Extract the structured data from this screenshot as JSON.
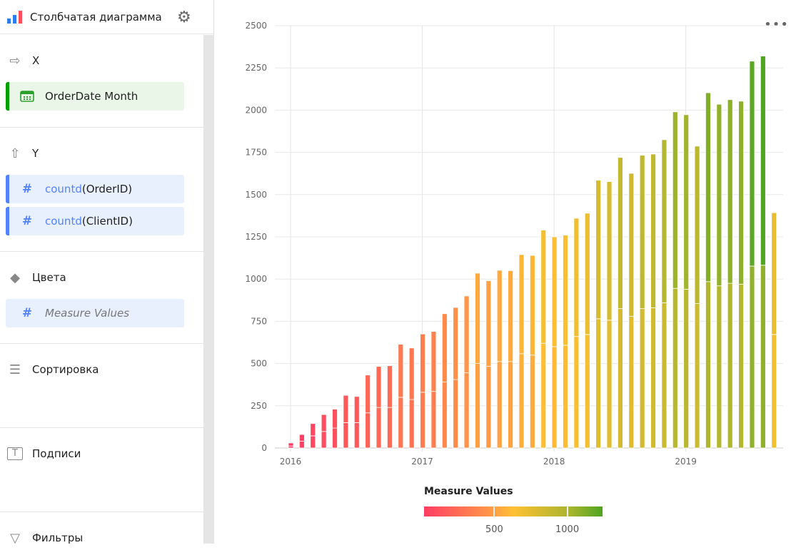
{
  "header": {
    "title": "Столбчатая диаграмма",
    "chart_icon": "bar-chart-icon",
    "settings_icon": "gear-icon"
  },
  "sections": {
    "x": {
      "label": "X",
      "icon": "arrow-right-icon",
      "fields": [
        {
          "label": "OrderDate Month",
          "icon": "calendar-icon"
        }
      ]
    },
    "y": {
      "label": "Y",
      "icon": "arrow-up-icon",
      "fields": [
        {
          "func": "countd",
          "arg": "(OrderID)",
          "icon": "hash-icon"
        },
        {
          "func": "countd",
          "arg": "(ClientID)",
          "icon": "hash-icon"
        }
      ]
    },
    "colors": {
      "label": "Цвета",
      "icon": "paint-bucket-icon",
      "fields": [
        {
          "label": "Measure Values",
          "icon": "hash-icon"
        }
      ]
    },
    "sort": {
      "label": "Сортировка",
      "icon": "sort-icon"
    },
    "labels": {
      "label": "Подписи",
      "icon": "text-icon"
    },
    "filters": {
      "label": "Фильтры",
      "icon": "filter-icon"
    }
  },
  "colors": {
    "x_field": "#00a000",
    "y_field": "#5282ff",
    "gradient": [
      "#ff3d64",
      "#ff9d45",
      "#ffc032",
      "#a8b52e",
      "#4fa521"
    ]
  },
  "chart_data": {
    "type": "bar",
    "stacked": true,
    "xlabel": "",
    "ylabel": "",
    "ylim": [
      0,
      2500
    ],
    "yticks": [
      "0",
      "250",
      "500",
      "750",
      "1000",
      "1250",
      "1500",
      "1750",
      "2000",
      "2250",
      "2500"
    ],
    "xticks": [
      "2016",
      "2017",
      "2018",
      "2019"
    ],
    "start": "2016-01",
    "interval": "month",
    "series": [
      {
        "name": "countd(OrderID)",
        "values": [
          18,
          40,
          73,
          100,
          112,
          162,
          155,
          224,
          243,
          247,
          314,
          305,
          345,
          355,
          405,
          427,
          455,
          535,
          507,
          540,
          538,
          587,
          590,
          670,
          650,
          652,
          700,
          718,
          820,
          820,
          895,
          846,
          908,
          910,
          965,
          1045,
          1033,
          932,
          1118,
          1075,
          1087,
          1083,
          1213,
          1238,
          721
        ]
      },
      {
        "name": "countd(ClientID)",
        "values": [
          12,
          40,
          72,
          98,
          118,
          150,
          150,
          208,
          240,
          240,
          300,
          287,
          330,
          335,
          390,
          405,
          445,
          500,
          483,
          512,
          512,
          558,
          550,
          620,
          600,
          608,
          660,
          672,
          765,
          757,
          825,
          780,
          825,
          830,
          860,
          945,
          940,
          855,
          985,
          960,
          975,
          970,
          1077,
          1082,
          672
        ]
      }
    ],
    "legend": {
      "title": "Measure Values",
      "ticks": [
        "500",
        "1000"
      ],
      "range": [
        18,
        1238
      ],
      "placement": "bottom"
    },
    "grid": true
  },
  "menu_icon": "more-dots-icon"
}
